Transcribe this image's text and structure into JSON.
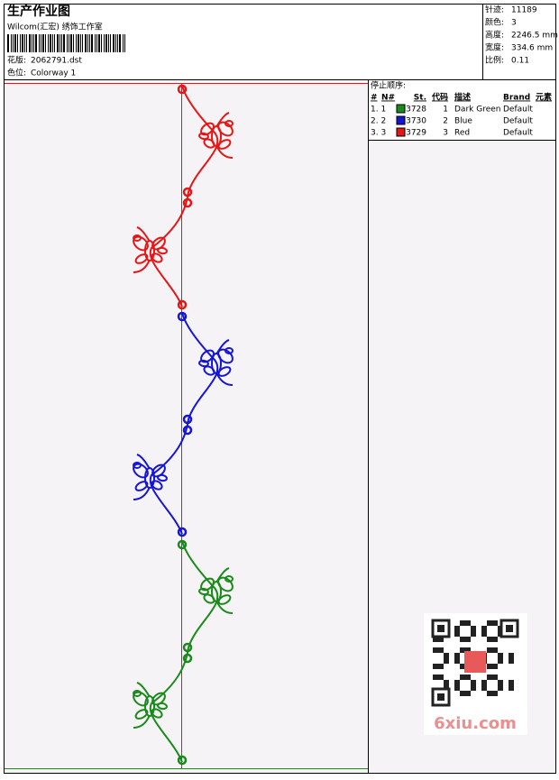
{
  "header": {
    "title": "生产作业图",
    "studio": "Wilcom(汇宏) 绣饰工作室",
    "design_label": "花版:",
    "design_value": "2062791.dst",
    "colorway_label": "色位:",
    "colorway_value": "Colorway 1"
  },
  "stats": [
    {
      "label": "针迹:",
      "value": "11189"
    },
    {
      "label": "颜色:",
      "value": "3"
    },
    {
      "label": "高度:",
      "value": "2246.5 mm"
    },
    {
      "label": "宽度:",
      "value": "334.6 mm"
    },
    {
      "label": "比例:",
      "value": "0.11"
    }
  ],
  "stop_sequence": {
    "title": "停止顺序:",
    "columns": [
      "#",
      "N#",
      "St.",
      "代码",
      "描述",
      "Brand",
      "元素"
    ],
    "rows": [
      {
        "index": "1. 1",
        "color": "#1a8a1a",
        "stitches": "3728",
        "code": "1",
        "description": "Dark Green",
        "brand": "Default"
      },
      {
        "index": "2. 2",
        "color": "#1515d8",
        "stitches": "3730",
        "code": "2",
        "description": "Blue",
        "brand": "Default"
      },
      {
        "index": "3. 3",
        "color": "#e81515",
        "stitches": "3729",
        "code": "3",
        "description": "Red",
        "brand": "Default"
      }
    ]
  },
  "watermark": "6xiu.com"
}
